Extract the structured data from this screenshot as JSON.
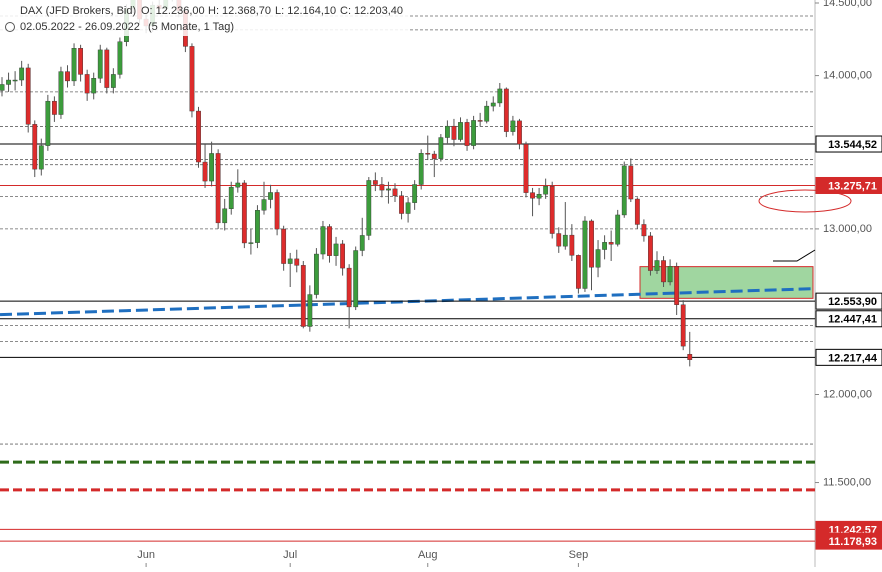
{
  "chart_data": {
    "type": "candlestick",
    "title": "DAX (JFD Brokers, Bid)",
    "ohlc_header": [
      "O: 12.236,00",
      "H: 12.368,70",
      "L: 12.164,10",
      "C: 12.203,40"
    ],
    "date_range": "02.05.2022 - 26.09.2022",
    "period": "(5 Monate, 1 Tag)",
    "log_scale": true,
    "ylim": [
      11040,
      14521
    ],
    "yticks": [
      {
        "value": 14500,
        "label": "14.500,00"
      },
      {
        "value": 14000,
        "label": "14.000,00"
      },
      {
        "value": 13000,
        "label": "13.000,00"
      },
      {
        "value": 12000,
        "label": "12.000,00"
      },
      {
        "value": 11500,
        "label": "11.500,00"
      }
    ],
    "up_color": "#3c9c3c",
    "down_color": "#dd2c2c",
    "categories": [
      null,
      null,
      null,
      null,
      null,
      null,
      null,
      null,
      null,
      null,
      null,
      null,
      null,
      null,
      null,
      null,
      null,
      null,
      null,
      null,
      null,
      null,
      "Jun",
      null,
      null,
      null,
      null,
      null,
      null,
      null,
      null,
      null,
      null,
      null,
      null,
      null,
      null,
      null,
      null,
      null,
      null,
      null,
      null,
      null,
      "Jul",
      null,
      null,
      null,
      null,
      null,
      null,
      null,
      null,
      null,
      null,
      null,
      null,
      null,
      null,
      null,
      null,
      null,
      null,
      null,
      null,
      "Aug",
      null,
      null,
      null,
      null,
      null,
      null,
      null,
      null,
      null,
      null,
      null,
      null,
      null,
      null,
      null,
      null,
      null,
      null,
      null,
      null,
      null,
      null,
      "Sep",
      null,
      null,
      null,
      null,
      null,
      null,
      null,
      null,
      null,
      null,
      null,
      null,
      null,
      null,
      null,
      null,
      null
    ],
    "open": [
      13900,
      13940,
      13970,
      13970,
      14052,
      13674,
      13381,
      13534,
      13828,
      13739,
      14027,
      13964,
      14186,
      14008,
      13882,
      13982,
      14175,
      13919,
      14008,
      14231,
      14462,
      14575,
      14388,
      14340,
      14485,
      14460,
      14653,
      14556,
      14446,
      14199,
      13762,
      13427,
      13304,
      13483,
      13038,
      13127,
      13265,
      13292,
      12912,
      12914,
      13118,
      13186,
      13231,
      12999,
      12784,
      12813,
      12773,
      12401,
      12594,
      12843,
      13015,
      12833,
      12906,
      12756,
      12519,
      12865,
      12959,
      13308,
      13282,
      13246,
      13254,
      13210,
      13097,
      13166,
      13282,
      13484,
      13479,
      13449,
      13587,
      13662,
      13574,
      13687,
      13534,
      13700,
      13694,
      13795,
      13816,
      13910,
      13626,
      13697,
      13544,
      13230,
      13194,
      13220,
      13271,
      12971,
      12892,
      12961,
      12835,
      12631,
      13050,
      12761,
      12871,
      12916,
      12904,
      13088,
      13402,
      13189,
      13028,
      12956,
      12741,
      12803,
      12671,
      12767,
      12532,
      12236
    ],
    "high": [
      13990,
      14020,
      14030,
      14100,
      14080,
      13700,
      13580,
      13870,
      13860,
      14060,
      14070,
      14220,
      14210,
      14040,
      14020,
      14210,
      14190,
      14050,
      14260,
      14490,
      14600,
      14610,
      14420,
      14510,
      14540,
      14690,
      14670,
      14580,
      14470,
      14220,
      13790,
      13540,
      13560,
      13510,
      13190,
      13300,
      13380,
      13310,
      13000,
      13150,
      13300,
      13280,
      13250,
      13020,
      12850,
      12870,
      12800,
      12650,
      12880,
      13050,
      13030,
      12950,
      12930,
      12780,
      12890,
      13070,
      13330,
      13360,
      13330,
      13300,
      13290,
      13240,
      13200,
      13310,
      13510,
      13600,
      13500,
      13610,
      13700,
      13710,
      13720,
      13710,
      13730,
      13750,
      13830,
      13860,
      13950,
      13920,
      13730,
      13710,
      13560,
      13260,
      13260,
      13320,
      13300,
      13010,
      13170,
      13030,
      12840,
      13080,
      13060,
      12930,
      12960,
      12990,
      13120,
      13430,
      13450,
      13200,
      13060,
      12980,
      12860,
      12830,
      12810,
      12790,
      12560,
      12368.7
    ],
    "low": [
      13860,
      13890,
      13900,
      13930,
      13620,
      13330,
      13340,
      13500,
      13690,
      13710,
      13920,
      13930,
      13960,
      13830,
      13840,
      13950,
      13880,
      13880,
      13980,
      14200,
      14430,
      14350,
      14290,
      14300,
      14420,
      14440,
      14510,
      14400,
      14160,
      13720,
      13390,
      13260,
      13270,
      13000,
      12990,
      13090,
      13230,
      12880,
      12840,
      12880,
      13090,
      13130,
      12960,
      12740,
      12640,
      12730,
      12390,
      12370,
      12570,
      12810,
      12790,
      12770,
      12710,
      12390,
      12500,
      12830,
      12930,
      13240,
      13200,
      13160,
      13170,
      13060,
      13040,
      13120,
      13250,
      13440,
      13330,
      13430,
      13550,
      13530,
      13560,
      13500,
      13510,
      13660,
      13680,
      13760,
      13790,
      13590,
      13600,
      13510,
      13200,
      13080,
      13150,
      13190,
      12940,
      12850,
      12870,
      12800,
      12600,
      12610,
      12620,
      12700,
      12810,
      12800,
      12890,
      13070,
      13170,
      13000,
      12920,
      12710,
      12720,
      12640,
      12650,
      12470,
      12260,
      12164.1
    ],
    "close": [
      13940,
      13970,
      13970,
      14052,
      13674,
      13381,
      13534,
      13828,
      13739,
      14027,
      13964,
      14186,
      14008,
      13882,
      13982,
      14175,
      13919,
      14008,
      14231,
      14462,
      14575,
      14388,
      14340,
      14485,
      14460,
      14653,
      14556,
      14446,
      14199,
      13762,
      13427,
      13304,
      13483,
      13038,
      13127,
      13265,
      13292,
      12912,
      12914,
      13118,
      13186,
      13231,
      12999,
      12784,
      12813,
      12773,
      12401,
      12594,
      12843,
      13015,
      12833,
      12906,
      12756,
      12519,
      12865,
      12959,
      13308,
      13282,
      13246,
      13254,
      13210,
      13097,
      13166,
      13282,
      13484,
      13479,
      13449,
      13587,
      13662,
      13574,
      13687,
      13534,
      13700,
      13694,
      13795,
      13816,
      13910,
      13626,
      13697,
      13544,
      13230,
      13194,
      13220,
      13271,
      12971,
      12892,
      12961,
      12835,
      12631,
      13050,
      12761,
      12871,
      12916,
      12904,
      13088,
      13402,
      13189,
      13028,
      12956,
      12741,
      12803,
      12671,
      12767,
      12532,
      12284,
      12203.4
    ],
    "levels": [
      {
        "value": 13544.52,
        "label": "13.544,52",
        "color": "#000000"
      },
      {
        "value": 13275.71,
        "label": "13.275,71",
        "color": "#d42a2a"
      },
      {
        "value": 12553.9,
        "label": "12.553,90",
        "color": "#000000"
      },
      {
        "value": 12447.41,
        "label": "12.447,41",
        "color": "#000000"
      },
      {
        "value": 12217.44,
        "label": "12.217,44",
        "color": "#000000"
      },
      {
        "value": 11242.57,
        "label": "11.242,57",
        "color": "#d42a2a"
      },
      {
        "value": 11178.93,
        "label": "11.178,93",
        "color": "#d42a2a"
      }
    ],
    "dashed_levels": [
      14409,
      14313,
      13890,
      13660,
      13443,
      13410,
      13205,
      13000,
      12407,
      12312,
      11716
    ],
    "thick_dashed_levels": [
      {
        "value": 11614,
        "color": "#2e6b1a"
      },
      {
        "value": 11459,
        "color": "#d42a2a"
      }
    ],
    "trendline": [
      12472,
      12630
    ],
    "zone": [
      12571,
      12765
    ]
  }
}
